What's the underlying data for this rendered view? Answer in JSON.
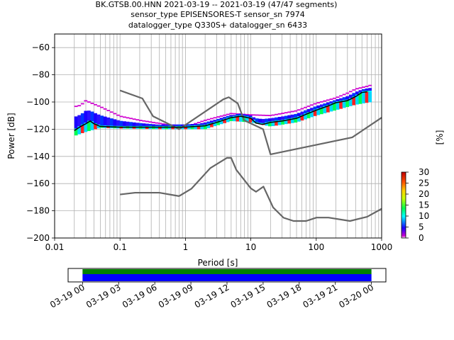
{
  "title_lines": [
    "BK.GTSB.00.HNN   2021-03-19 -- 2021-03-19  (47/47 segments)",
    "sensor_type EPISENSORES-T sensor_sn 7974",
    "datalogger_type Q330S+ datalogger_sn 6433"
  ],
  "chart_data": {
    "type": "line",
    "title": "BK.GTSB.00.HNN   2021-03-19 -- 2021-03-19  (47/47 segments)",
    "xlabel": "Period [s]",
    "ylabel": "Power [dB]",
    "xscale": "log",
    "xlim": [
      0.01,
      1000
    ],
    "ylim": [
      -200,
      -50
    ],
    "grid": true,
    "x_ticks": [
      0.01,
      0.1,
      1,
      10,
      100,
      1000
    ],
    "x_tick_labels": [
      "0.01",
      "0.1",
      "1",
      "10",
      "100",
      "1000"
    ],
    "y_ticks": [
      -200,
      -180,
      -160,
      -140,
      -120,
      -100,
      -80,
      -60
    ],
    "y_tick_labels": [
      "−200",
      "−180",
      "−160",
      "−140",
      "−120",
      "−100",
      "−80",
      "−60"
    ],
    "series": [
      {
        "role": "noise-model-high",
        "color": "#666666",
        "x": [
          0.1,
          0.22,
          0.32,
          0.8,
          3.8,
          4.6,
          6.3,
          7.9,
          15.4,
          20,
          354.8,
          1000
        ],
        "y": [
          -91.5,
          -97.4,
          -110.5,
          -120,
          -98,
          -96.5,
          -101,
          -113.5,
          -120,
          -138.5,
          -126,
          -111.5
        ]
      },
      {
        "role": "noise-model-low",
        "color": "#666666",
        "x": [
          0.1,
          0.17,
          0.4,
          0.8,
          1.24,
          2.4,
          4.3,
          5.0,
          6.0,
          10,
          12,
          15.6,
          21.9,
          31.6,
          45,
          70,
          101,
          154,
          328,
          600,
          1000
        ],
        "y": [
          -168,
          -166.7,
          -166.7,
          -169.2,
          -163.7,
          -148.6,
          -141.1,
          -141.1,
          -149.9,
          -163.5,
          -166,
          -162.2,
          -177.5,
          -185.1,
          -187.5,
          -187.5,
          -185,
          -185,
          -187.5,
          -184.4,
          -178.5
        ]
      },
      {
        "role": "mean-psd",
        "color": "#000000",
        "x": [
          0.02,
          0.025,
          0.03,
          0.035,
          0.04,
          0.05,
          0.1,
          0.2,
          0.5,
          1,
          2,
          3,
          5,
          7,
          10,
          12,
          15,
          20,
          30,
          50,
          70,
          100,
          150,
          200,
          300,
          400,
          500,
          600
        ],
        "y": [
          -121,
          -118,
          -116,
          -114,
          -116,
          -118,
          -118.5,
          -118.5,
          -118.5,
          -118.5,
          -117.5,
          -115,
          -111.5,
          -110.5,
          -112,
          -115.5,
          -116.5,
          -115,
          -114,
          -112,
          -109,
          -106,
          -103,
          -100.5,
          -99,
          -96,
          -93,
          -92.5
        ]
      }
    ],
    "psd_density": {
      "colorbar_label": "[%]",
      "colorbar_ticks": [
        0,
        5,
        10,
        15,
        20,
        25,
        30
      ],
      "colorbar_range": [
        0,
        30
      ],
      "min_envelope": {
        "x": [
          0.02,
          0.03,
          0.05,
          0.1,
          0.5,
          1,
          2,
          5,
          10,
          20,
          50,
          100,
          200,
          400,
          700
        ],
        "y": [
          -125,
          -122,
          -119,
          -119.5,
          -120,
          -120,
          -120,
          -114,
          -115,
          -118,
          -115,
          -110,
          -106,
          -102,
          -100
        ]
      },
      "max_envelope": {
        "x": [
          0.02,
          0.025,
          0.03,
          0.035,
          0.05,
          0.1,
          0.2,
          0.5,
          1,
          2,
          5,
          10,
          20,
          50,
          100,
          200,
          300,
          400,
          600,
          700
        ],
        "y": [
          -103,
          -102,
          -98.5,
          -100,
          -103,
          -110,
          -113,
          -116,
          -118,
          -113,
          -108,
          -109,
          -109.5,
          -106,
          -100.5,
          -96.5,
          -93,
          -90,
          -88,
          -87
        ]
      }
    }
  },
  "timeline": {
    "tick_labels": [
      "03-19 00",
      "03-19 03",
      "03-19 06",
      "03-19 09",
      "03-19 12",
      "03-19 15",
      "03-19 18",
      "03-19 21",
      "03-20 00"
    ],
    "tick_hours": [
      0,
      3,
      6,
      9,
      12,
      15,
      18,
      21,
      24
    ],
    "range_hours": [
      -1.2,
      25.2
    ],
    "coverage_hours": [
      0,
      24
    ],
    "coverage_colors": [
      "#008000",
      "#0000ff"
    ]
  },
  "colors": {
    "noise_model": "#666666",
    "mean_line": "#000000",
    "grid": "#b0b0b0"
  }
}
